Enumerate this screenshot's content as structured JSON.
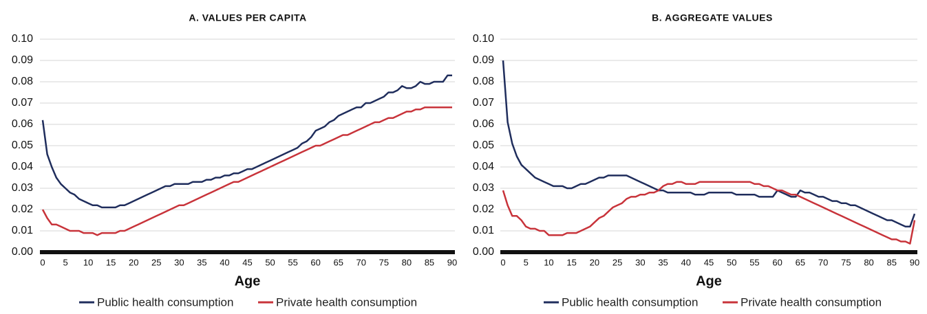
{
  "chart_data": [
    {
      "type": "line",
      "title": "A. VALUES PER CAPITA",
      "xlabel": "Age",
      "x": [
        0,
        1,
        2,
        3,
        4,
        5,
        6,
        7,
        8,
        9,
        10,
        11,
        12,
        13,
        14,
        15,
        16,
        17,
        18,
        19,
        20,
        21,
        22,
        23,
        24,
        25,
        26,
        27,
        28,
        29,
        30,
        31,
        32,
        33,
        34,
        35,
        36,
        37,
        38,
        39,
        40,
        41,
        42,
        43,
        44,
        45,
        46,
        47,
        48,
        49,
        50,
        51,
        52,
        53,
        54,
        55,
        56,
        57,
        58,
        59,
        60,
        61,
        62,
        63,
        64,
        65,
        66,
        67,
        68,
        69,
        70,
        71,
        72,
        73,
        74,
        75,
        76,
        77,
        78,
        79,
        80,
        81,
        82,
        83,
        84,
        85,
        86,
        87,
        88,
        89,
        90
      ],
      "series": [
        {
          "name": "Public health consumption",
          "color": "#1f2d5c",
          "values": [
            0.062,
            0.046,
            0.04,
            0.035,
            0.032,
            0.03,
            0.028,
            0.027,
            0.025,
            0.024,
            0.023,
            0.022,
            0.022,
            0.021,
            0.021,
            0.021,
            0.021,
            0.022,
            0.022,
            0.023,
            0.024,
            0.025,
            0.026,
            0.027,
            0.028,
            0.029,
            0.03,
            0.031,
            0.031,
            0.032,
            0.032,
            0.032,
            0.032,
            0.033,
            0.033,
            0.033,
            0.034,
            0.034,
            0.035,
            0.035,
            0.036,
            0.036,
            0.037,
            0.037,
            0.038,
            0.039,
            0.039,
            0.04,
            0.041,
            0.042,
            0.043,
            0.044,
            0.045,
            0.046,
            0.047,
            0.048,
            0.049,
            0.051,
            0.052,
            0.054,
            0.057,
            0.058,
            0.059,
            0.061,
            0.062,
            0.064,
            0.065,
            0.066,
            0.067,
            0.068,
            0.068,
            0.07,
            0.07,
            0.071,
            0.072,
            0.073,
            0.075,
            0.075,
            0.076,
            0.078,
            0.077,
            0.077,
            0.078,
            0.08,
            0.079,
            0.079,
            0.08,
            0.08,
            0.08,
            0.083,
            0.083
          ]
        },
        {
          "name": "Private health consumption",
          "color": "#c8333a",
          "values": [
            0.02,
            0.016,
            0.013,
            0.013,
            0.012,
            0.011,
            0.01,
            0.01,
            0.01,
            0.009,
            0.009,
            0.009,
            0.008,
            0.009,
            0.009,
            0.009,
            0.009,
            0.01,
            0.01,
            0.011,
            0.012,
            0.013,
            0.014,
            0.015,
            0.016,
            0.017,
            0.018,
            0.019,
            0.02,
            0.021,
            0.022,
            0.022,
            0.023,
            0.024,
            0.025,
            0.026,
            0.027,
            0.028,
            0.029,
            0.03,
            0.031,
            0.032,
            0.033,
            0.033,
            0.034,
            0.035,
            0.036,
            0.037,
            0.038,
            0.039,
            0.04,
            0.041,
            0.042,
            0.043,
            0.044,
            0.045,
            0.046,
            0.047,
            0.048,
            0.049,
            0.05,
            0.05,
            0.051,
            0.052,
            0.053,
            0.054,
            0.055,
            0.055,
            0.056,
            0.057,
            0.058,
            0.059,
            0.06,
            0.061,
            0.061,
            0.062,
            0.063,
            0.063,
            0.064,
            0.065,
            0.066,
            0.066,
            0.067,
            0.067,
            0.068,
            0.068,
            0.068,
            0.068,
            0.068,
            0.068,
            0.068
          ]
        }
      ],
      "xlim": [
        0,
        90
      ],
      "xticks": [
        0,
        5,
        10,
        15,
        20,
        25,
        30,
        35,
        40,
        45,
        50,
        55,
        60,
        65,
        70,
        75,
        80,
        85,
        90
      ],
      "ylim": [
        0,
        0.1
      ],
      "yticks": [
        {
          "value": 0,
          "label": "0.00"
        },
        {
          "value": 0.01,
          "label": "0.01"
        },
        {
          "value": 0.02,
          "label": "0.02"
        },
        {
          "value": 0.03,
          "label": "0.03"
        },
        {
          "value": 0.04,
          "label": "0.04"
        },
        {
          "value": 0.05,
          "label": "0.05"
        },
        {
          "value": 0.06,
          "label": "0.06"
        },
        {
          "value": 0.07,
          "label": "0.07"
        },
        {
          "value": 0.08,
          "label": "0.08"
        },
        {
          "value": 0.09,
          "label": "0.09"
        },
        {
          "value": 0.1,
          "label": "0.10"
        }
      ],
      "grid": true,
      "legend": "bottom"
    },
    {
      "type": "line",
      "title": "B. AGGREGATE VALUES",
      "xlabel": "Age",
      "x": [
        0,
        1,
        2,
        3,
        4,
        5,
        6,
        7,
        8,
        9,
        10,
        11,
        12,
        13,
        14,
        15,
        16,
        17,
        18,
        19,
        20,
        21,
        22,
        23,
        24,
        25,
        26,
        27,
        28,
        29,
        30,
        31,
        32,
        33,
        34,
        35,
        36,
        37,
        38,
        39,
        40,
        41,
        42,
        43,
        44,
        45,
        46,
        47,
        48,
        49,
        50,
        51,
        52,
        53,
        54,
        55,
        56,
        57,
        58,
        59,
        60,
        61,
        62,
        63,
        64,
        65,
        66,
        67,
        68,
        69,
        70,
        71,
        72,
        73,
        74,
        75,
        76,
        77,
        78,
        79,
        80,
        81,
        82,
        83,
        84,
        85,
        86,
        87,
        88,
        89,
        90
      ],
      "series": [
        {
          "name": "Public health consumption",
          "color": "#1f2d5c",
          "values": [
            0.09,
            0.061,
            0.051,
            0.045,
            0.041,
            0.039,
            0.037,
            0.035,
            0.034,
            0.033,
            0.032,
            0.031,
            0.031,
            0.031,
            0.03,
            0.03,
            0.031,
            0.032,
            0.032,
            0.033,
            0.034,
            0.035,
            0.035,
            0.036,
            0.036,
            0.036,
            0.036,
            0.036,
            0.035,
            0.034,
            0.033,
            0.032,
            0.031,
            0.03,
            0.029,
            0.029,
            0.028,
            0.028,
            0.028,
            0.028,
            0.028,
            0.028,
            0.027,
            0.027,
            0.027,
            0.028,
            0.028,
            0.028,
            0.028,
            0.028,
            0.028,
            0.027,
            0.027,
            0.027,
            0.027,
            0.027,
            0.026,
            0.026,
            0.026,
            0.026,
            0.029,
            0.028,
            0.027,
            0.026,
            0.026,
            0.029,
            0.028,
            0.028,
            0.027,
            0.026,
            0.026,
            0.025,
            0.024,
            0.024,
            0.023,
            0.023,
            0.022,
            0.022,
            0.021,
            0.02,
            0.019,
            0.018,
            0.017,
            0.016,
            0.015,
            0.015,
            0.014,
            0.013,
            0.012,
            0.012,
            0.018
          ]
        },
        {
          "name": "Private health consumption",
          "color": "#c8333a",
          "values": [
            0.029,
            0.022,
            0.017,
            0.017,
            0.015,
            0.012,
            0.011,
            0.011,
            0.01,
            0.01,
            0.008,
            0.008,
            0.008,
            0.008,
            0.009,
            0.009,
            0.009,
            0.01,
            0.011,
            0.012,
            0.014,
            0.016,
            0.017,
            0.019,
            0.021,
            0.022,
            0.023,
            0.025,
            0.026,
            0.026,
            0.027,
            0.027,
            0.028,
            0.028,
            0.029,
            0.031,
            0.032,
            0.032,
            0.033,
            0.033,
            0.032,
            0.032,
            0.032,
            0.033,
            0.033,
            0.033,
            0.033,
            0.033,
            0.033,
            0.033,
            0.033,
            0.033,
            0.033,
            0.033,
            0.033,
            0.032,
            0.032,
            0.031,
            0.031,
            0.03,
            0.029,
            0.029,
            0.028,
            0.027,
            0.027,
            0.026,
            0.025,
            0.024,
            0.023,
            0.022,
            0.021,
            0.02,
            0.019,
            0.018,
            0.017,
            0.016,
            0.015,
            0.014,
            0.013,
            0.012,
            0.011,
            0.01,
            0.009,
            0.008,
            0.007,
            0.006,
            0.006,
            0.005,
            0.005,
            0.004,
            0.015
          ]
        }
      ],
      "xlim": [
        0,
        90
      ],
      "xticks": [
        0,
        5,
        10,
        15,
        20,
        25,
        30,
        35,
        40,
        45,
        50,
        55,
        60,
        65,
        70,
        75,
        80,
        85,
        90
      ],
      "ylim": [
        0,
        0.1
      ],
      "yticks": [
        {
          "value": 0,
          "label": "0.00"
        },
        {
          "value": 0.01,
          "label": "0.01"
        },
        {
          "value": 0.02,
          "label": "0.02"
        },
        {
          "value": 0.03,
          "label": "0.03"
        },
        {
          "value": 0.04,
          "label": "0.04"
        },
        {
          "value": 0.05,
          "label": "0.05"
        },
        {
          "value": 0.06,
          "label": "0.06"
        },
        {
          "value": 0.07,
          "label": "0.07"
        },
        {
          "value": 0.08,
          "label": "0.08"
        },
        {
          "value": 0.09,
          "label": "0.09"
        },
        {
          "value": 0.1,
          "label": "0.10"
        }
      ],
      "grid": true,
      "legend": "bottom"
    }
  ]
}
